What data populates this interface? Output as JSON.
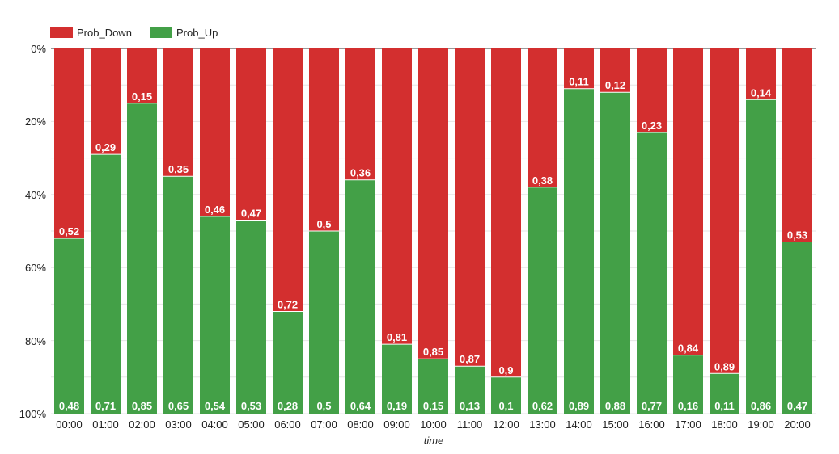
{
  "chart_data": {
    "type": "bar",
    "stacked": true,
    "xlabel": "time",
    "ylabel": "",
    "ylim": [
      0,
      100
    ],
    "y_reversed": true,
    "y_ticks": [
      "0%",
      "20%",
      "40%",
      "60%",
      "80%",
      "100%"
    ],
    "legend_position": "top-left",
    "grid": true,
    "categories": [
      "00:00",
      "01:00",
      "02:00",
      "03:00",
      "04:00",
      "05:00",
      "06:00",
      "07:00",
      "08:00",
      "09:00",
      "10:00",
      "11:00",
      "12:00",
      "13:00",
      "14:00",
      "15:00",
      "16:00",
      "17:00",
      "18:00",
      "19:00",
      "20:00"
    ],
    "series": [
      {
        "name": "Prob_Down",
        "color": "#d32f2f",
        "values": [
          0.52,
          0.29,
          0.15,
          0.35,
          0.46,
          0.47,
          0.72,
          0.5,
          0.36,
          0.81,
          0.85,
          0.87,
          0.9,
          0.38,
          0.11,
          0.12,
          0.23,
          0.84,
          0.89,
          0.14,
          0.53
        ],
        "labels": [
          "0,52",
          "0,29",
          "0,15",
          "0,35",
          "0,46",
          "0,47",
          "0,72",
          "0,5",
          "0,36",
          "0,81",
          "0,85",
          "0,87",
          "0,9",
          "0,38",
          "0,11",
          "0,12",
          "0,23",
          "0,84",
          "0,89",
          "0,14",
          "0,53"
        ]
      },
      {
        "name": "Prob_Up",
        "color": "#43a047",
        "values": [
          0.48,
          0.71,
          0.85,
          0.65,
          0.54,
          0.53,
          0.28,
          0.5,
          0.64,
          0.19,
          0.15,
          0.13,
          0.1,
          0.62,
          0.89,
          0.88,
          0.77,
          0.16,
          0.11,
          0.86,
          0.47
        ],
        "labels": [
          "0,48",
          "0,71",
          "0,85",
          "0,65",
          "0,54",
          "0,53",
          "0,28",
          "0,5",
          "0,64",
          "0,19",
          "0,15",
          "0,13",
          "0,1",
          "0,62",
          "0,89",
          "0,88",
          "0,77",
          "0,16",
          "0,11",
          "0,86",
          "0,47"
        ]
      }
    ]
  }
}
